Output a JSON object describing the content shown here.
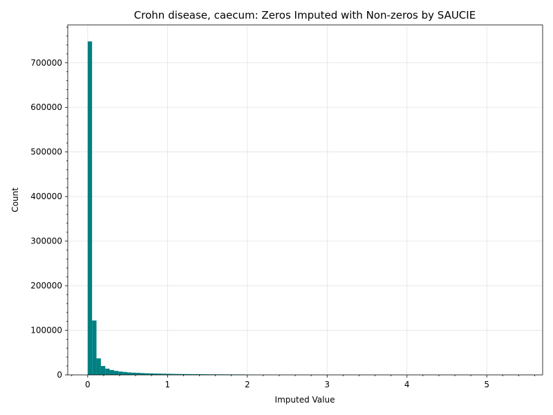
{
  "chart_data": {
    "type": "bar",
    "title": "Crohn disease, caecum: Zeros Imputed with Non-zeros by SAUCIE",
    "xlabel": "Imputed Value",
    "ylabel": "Count",
    "xlim": [
      -0.25,
      5.7
    ],
    "ylim": [
      0,
      785000
    ],
    "x_ticks": [
      0,
      1,
      2,
      3,
      4,
      5
    ],
    "x_tick_labels": [
      "0",
      "1",
      "2",
      "3",
      "4",
      "5"
    ],
    "y_ticks": [
      0,
      100000,
      200000,
      300000,
      400000,
      500000,
      600000,
      700000
    ],
    "y_tick_labels": [
      "0",
      "100000",
      "200000",
      "300000",
      "400000",
      "500000",
      "600000",
      "700000"
    ],
    "grid": true,
    "bar_color": "#008080",
    "bin_width": 0.055,
    "bins_start": [
      0,
      0.055,
      0.11,
      0.165,
      0.22,
      0.275,
      0.33,
      0.385,
      0.44,
      0.495,
      0.55,
      0.605,
      0.66,
      0.715,
      0.77,
      0.825,
      0.88,
      0.935,
      0.99,
      1.045,
      1.1,
      1.155,
      1.21,
      1.265,
      1.32,
      1.375,
      1.43,
      1.485,
      1.54,
      1.595,
      1.65,
      1.705,
      1.76,
      1.815,
      1.87,
      1.925,
      1.98,
      2.035,
      2.09,
      2.145,
      2.2,
      2.255,
      2.31,
      2.365,
      2.42,
      2.475,
      2.53,
      2.585,
      2.64,
      2.695,
      2.75,
      2.805,
      2.86,
      2.915,
      2.97,
      3.025,
      3.08,
      3.135,
      3.19,
      3.245,
      3.3,
      3.355,
      3.41,
      3.465,
      3.52,
      3.575,
      3.63,
      3.685,
      3.74,
      3.795,
      3.85,
      3.905,
      3.96,
      4.015,
      4.07,
      4.125,
      4.18,
      4.235,
      4.29,
      4.345,
      4.4,
      4.455,
      4.51,
      4.565,
      4.62,
      4.675,
      4.73,
      4.785,
      4.84,
      4.895,
      4.95,
      5.005,
      5.06,
      5.115,
      5.17,
      5.225,
      5.28,
      5.335,
      5.39
    ],
    "values": [
      748000,
      122000,
      37000,
      20000,
      14000,
      11000,
      9000,
      7500,
      6500,
      5500,
      5000,
      4500,
      4000,
      3600,
      3300,
      3000,
      2800,
      2600,
      2400,
      2200,
      2000,
      1900,
      1800,
      1700,
      1600,
      1500,
      1400,
      1300,
      1250,
      1200,
      1150,
      1100,
      1050,
      1000,
      950,
      900,
      300,
      250,
      220,
      200,
      180,
      160,
      150,
      140,
      130,
      120,
      110,
      100,
      90,
      80,
      75,
      70,
      65,
      60,
      55,
      50,
      45,
      40,
      35,
      30,
      28,
      26,
      24,
      22,
      20,
      18,
      16,
      14,
      12,
      10,
      10,
      9,
      8,
      8,
      7,
      7,
      6,
      6,
      5,
      5,
      5,
      4,
      4,
      4,
      3,
      3,
      3,
      3,
      2,
      2,
      2,
      2,
      2,
      1,
      1,
      1,
      1,
      1,
      1
    ]
  }
}
